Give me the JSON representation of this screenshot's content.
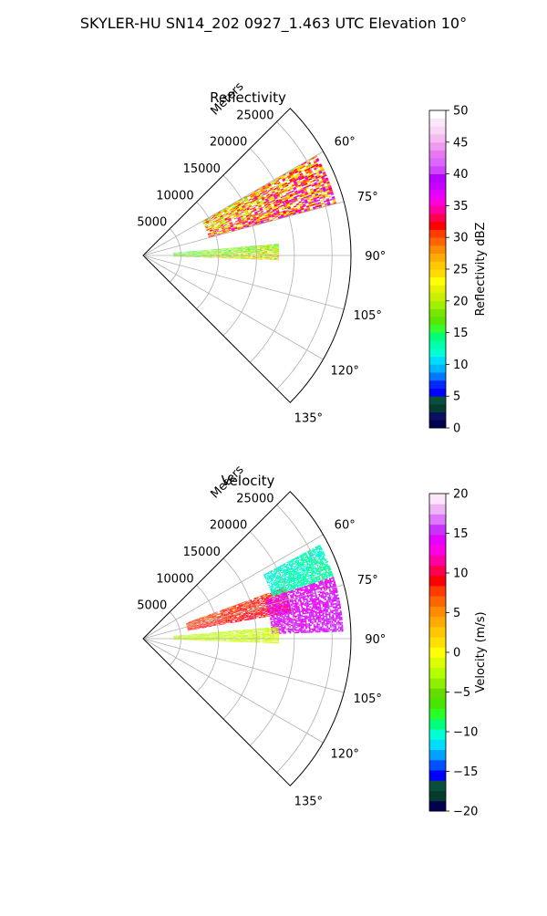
{
  "suptitle": "SKYLER-HU  SN14_202  0927_1.463 UTC Elevation 10°",
  "chart_data": [
    {
      "type": "heatmap",
      "subtype": "polar-sector (PPI)",
      "title": "Reflectivity",
      "radial_label": "Meters",
      "radial_ticks": [
        5000,
        10000,
        15000,
        20000,
        25000
      ],
      "radial_tick_labels": [
        "5000",
        "10000",
        "15000",
        "20000",
        "25000"
      ],
      "rlim": [
        0,
        27500
      ],
      "theta_range_deg": [
        45,
        135
      ],
      "theta_ticks_deg": [
        60,
        75,
        90,
        105,
        120,
        135
      ],
      "theta_tick_labels": [
        "60°",
        "75°",
        "90°",
        "105°",
        "120°",
        "135°"
      ],
      "grid": true,
      "colorbar": {
        "label": "Reflectivity dBZ",
        "range": [
          0,
          50
        ],
        "ticks": [
          0,
          5,
          10,
          15,
          20,
          25,
          30,
          35,
          40,
          45,
          50
        ],
        "tick_labels": [
          "0",
          "5",
          "10",
          "15",
          "20",
          "25",
          "30",
          "35",
          "40",
          "45",
          "50"
        ],
        "colors": [
          "#00004f",
          "#0a1060",
          "#063c2e",
          "#0a4f3c",
          "#0000ff",
          "#0028ff",
          "#0078ff",
          "#00b4ff",
          "#00dcff",
          "#00ffd2",
          "#00ffaa",
          "#00ff78",
          "#32ff32",
          "#5ae600",
          "#78e600",
          "#a0f000",
          "#c8f000",
          "#e6f000",
          "#ffff00",
          "#ffdc00",
          "#ffc800",
          "#ffaa00",
          "#ff8c00",
          "#ff6400",
          "#ff3c00",
          "#ff0000",
          "#ff0050",
          "#ff00a0",
          "#ff00dc",
          "#e600ff",
          "#c800ff",
          "#b400ff",
          "#cc44ff",
          "#dc66ff",
          "#e678f0",
          "#ee9aee",
          "#f4bcf2",
          "#f8d6f6",
          "#fce6fa",
          "#ffffff"
        ]
      },
      "echoes": [
        {
          "name": "upper-band",
          "theta_deg": [
            60,
            75
          ],
          "range_m": [
            9000,
            26500
          ],
          "value_dbz": [
            15,
            42
          ]
        },
        {
          "name": "lower-band",
          "theta_deg": [
            85,
            92
          ],
          "range_m": [
            4000,
            18000
          ],
          "value_dbz": [
            10,
            30
          ]
        }
      ]
    },
    {
      "type": "heatmap",
      "subtype": "polar-sector (PPI)",
      "title": "Velocity",
      "radial_label": "Meters",
      "radial_ticks": [
        5000,
        10000,
        15000,
        20000,
        25000
      ],
      "radial_tick_labels": [
        "5000",
        "10000",
        "15000",
        "20000",
        "25000"
      ],
      "rlim": [
        0,
        27500
      ],
      "theta_range_deg": [
        45,
        135
      ],
      "theta_ticks_deg": [
        60,
        75,
        90,
        105,
        120,
        135
      ],
      "theta_tick_labels": [
        "60°",
        "75°",
        "90°",
        "105°",
        "120°",
        "135°"
      ],
      "grid": true,
      "colorbar": {
        "label": "Velocity (m/s)",
        "range": [
          -20,
          20
        ],
        "ticks": [
          -20,
          -15,
          -10,
          -5,
          0,
          5,
          10,
          15,
          20
        ],
        "tick_labels": [
          "−20",
          "−15",
          "−10",
          "−5",
          "0",
          "5",
          "10",
          "15",
          "20"
        ],
        "colors": [
          "#00004f",
          "#063c2e",
          "#0a4f3c",
          "#0000ff",
          "#0050ff",
          "#00a0ff",
          "#00dcff",
          "#00ffd2",
          "#00ff78",
          "#28ff28",
          "#46e600",
          "#64dc00",
          "#8cf000",
          "#b4ff00",
          "#dcff00",
          "#ffff00",
          "#ffe000",
          "#ffc800",
          "#ffaa00",
          "#ff8c00",
          "#ff6400",
          "#ff3c00",
          "#ff0000",
          "#ff0050",
          "#ff00a0",
          "#ff00e6",
          "#e600ff",
          "#c832ff",
          "#dc78ff",
          "#f0b4f8",
          "#fce6fa"
        ]
      },
      "echoes": [
        {
          "name": "inbound-near",
          "theta_deg": [
            70,
            80
          ],
          "range_m": [
            6000,
            20000
          ],
          "value_ms": [
            5,
            12
          ]
        },
        {
          "name": "outbound-far",
          "theta_deg": [
            62,
            72
          ],
          "range_m": [
            18000,
            26500
          ],
          "value_ms": [
            -12,
            -8
          ]
        },
        {
          "name": "outbound-right",
          "theta_deg": [
            72,
            88
          ],
          "range_m": [
            17000,
            26500
          ],
          "value_ms": [
            12,
            17
          ]
        },
        {
          "name": "lower-band",
          "theta_deg": [
            85,
            92
          ],
          "range_m": [
            4000,
            18000
          ],
          "value_ms": [
            -4,
            0
          ]
        }
      ]
    }
  ]
}
